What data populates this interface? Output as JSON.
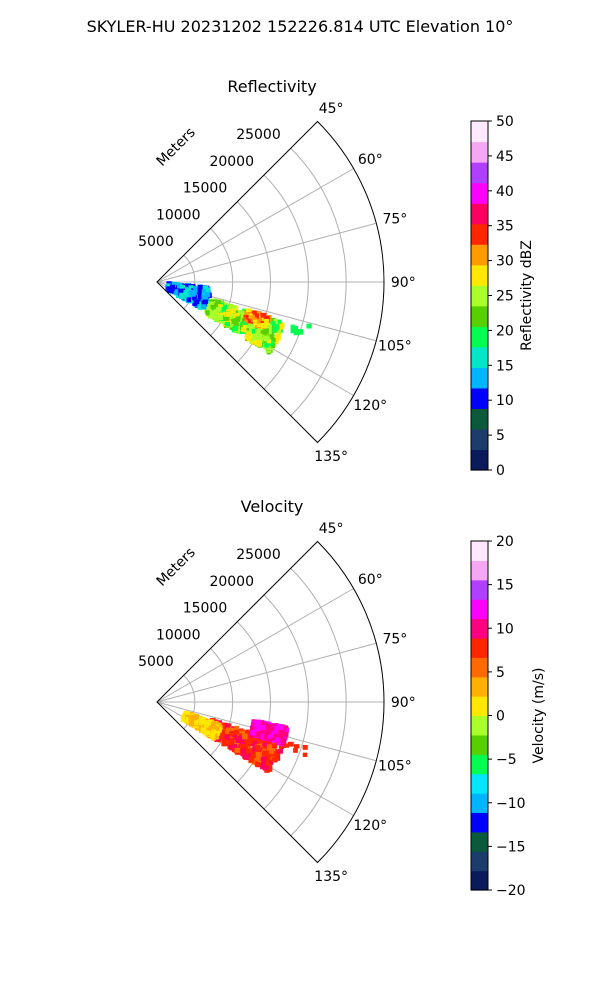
{
  "suptitle": "SKYLER-HU  20231202  152226.814 UTC Elevation 10°",
  "chart_data": [
    {
      "type": "heatmap",
      "projection": "polar-sector",
      "title": "Reflectivity",
      "range_label": "Meters",
      "range_ticks": [
        5000,
        10000,
        15000,
        20000,
        25000
      ],
      "r_max": 30000,
      "theta_range": [
        45,
        135
      ],
      "theta_ticks": [
        "45°",
        "60°",
        "75°",
        "90°",
        "105°",
        "120°",
        "135°"
      ],
      "colorbar": {
        "label": "Reflectivity dBZ",
        "min": 0,
        "max": 50,
        "ticks": [
          "0",
          "5",
          "10",
          "15",
          "20",
          "25",
          "30",
          "35",
          "40",
          "45",
          "50"
        ],
        "stops": [
          "#0a1a5a",
          "#1c3c6c",
          "#0c5a3c",
          "#0000ff",
          "#00b4ff",
          "#00e6c8",
          "#00ff50",
          "#58d000",
          "#a8ff2a",
          "#ffe800",
          "#ff9a00",
          "#ff2600",
          "#ff0060",
          "#ff00ff",
          "#b040ff",
          "#f4a8f4",
          "#ffe8ff"
        ]
      },
      "echoes": [
        {
          "name": "main-cell",
          "azimuth": [
            108,
            122
          ],
          "range": [
            7500,
            17500
          ],
          "colors": [
            "#00ff50",
            "#a8ff2a",
            "#58d000",
            "#ffe800",
            "#a8ff2a"
          ]
        },
        {
          "name": "cell-core",
          "azimuth": [
            107,
            113
          ],
          "range": [
            12500,
            15500
          ],
          "colors": [
            "#ff9a00",
            "#ff2600",
            "#ffe800"
          ]
        },
        {
          "name": "near-clutter",
          "azimuth": [
            96,
            120
          ],
          "range": [
            1500,
            7000
          ],
          "colors": [
            "#00e6c8",
            "#00b4ff",
            "#0000ff"
          ]
        },
        {
          "name": "outlier",
          "azimuth": [
            106,
            110
          ],
          "range": [
            18000,
            21000
          ],
          "colors": [
            "#00ff50"
          ]
        }
      ]
    },
    {
      "type": "heatmap",
      "projection": "polar-sector",
      "title": "Velocity",
      "range_label": "Meters",
      "range_ticks": [
        5000,
        10000,
        15000,
        20000,
        25000
      ],
      "r_max": 30000,
      "theta_range": [
        45,
        135
      ],
      "theta_ticks": [
        "45°",
        "60°",
        "75°",
        "90°",
        "105°",
        "120°",
        "135°"
      ],
      "colorbar": {
        "label": "Velocity (m/s)",
        "min": -20,
        "max": 20,
        "ticks": [
          "−20",
          "−15",
          "−10",
          "−5",
          "0",
          "5",
          "10",
          "15",
          "20"
        ],
        "stops": [
          "#0a1a5a",
          "#1c3c6c",
          "#0c5a3c",
          "#0000ff",
          "#00b4ff",
          "#00e6ff",
          "#00ff50",
          "#58d000",
          "#a8ff2a",
          "#ffe800",
          "#ffb000",
          "#ff6a00",
          "#ff2600",
          "#ff0080",
          "#ff00ff",
          "#b040ff",
          "#f4a8f4",
          "#ffe8ff"
        ]
      },
      "echoes": [
        {
          "name": "main-cell",
          "azimuth": [
            108,
            122
          ],
          "range": [
            7500,
            17500
          ],
          "colors": [
            "#ff2600",
            "#ff6a00",
            "#ff0060",
            "#ff2600"
          ]
        },
        {
          "name": "cell-east",
          "azimuth": [
            101,
            108
          ],
          "range": [
            13000,
            17500
          ],
          "colors": [
            "#ff00ff",
            "#ff0080"
          ]
        },
        {
          "name": "near-clutter",
          "azimuth": [
            110,
            122
          ],
          "range": [
            4000,
            9000
          ],
          "colors": [
            "#ffe800",
            "#ffb000"
          ]
        },
        {
          "name": "outlier",
          "azimuth": [
            106,
            110
          ],
          "range": [
            18000,
            21000
          ],
          "colors": [
            "#ff2600"
          ]
        }
      ]
    }
  ]
}
